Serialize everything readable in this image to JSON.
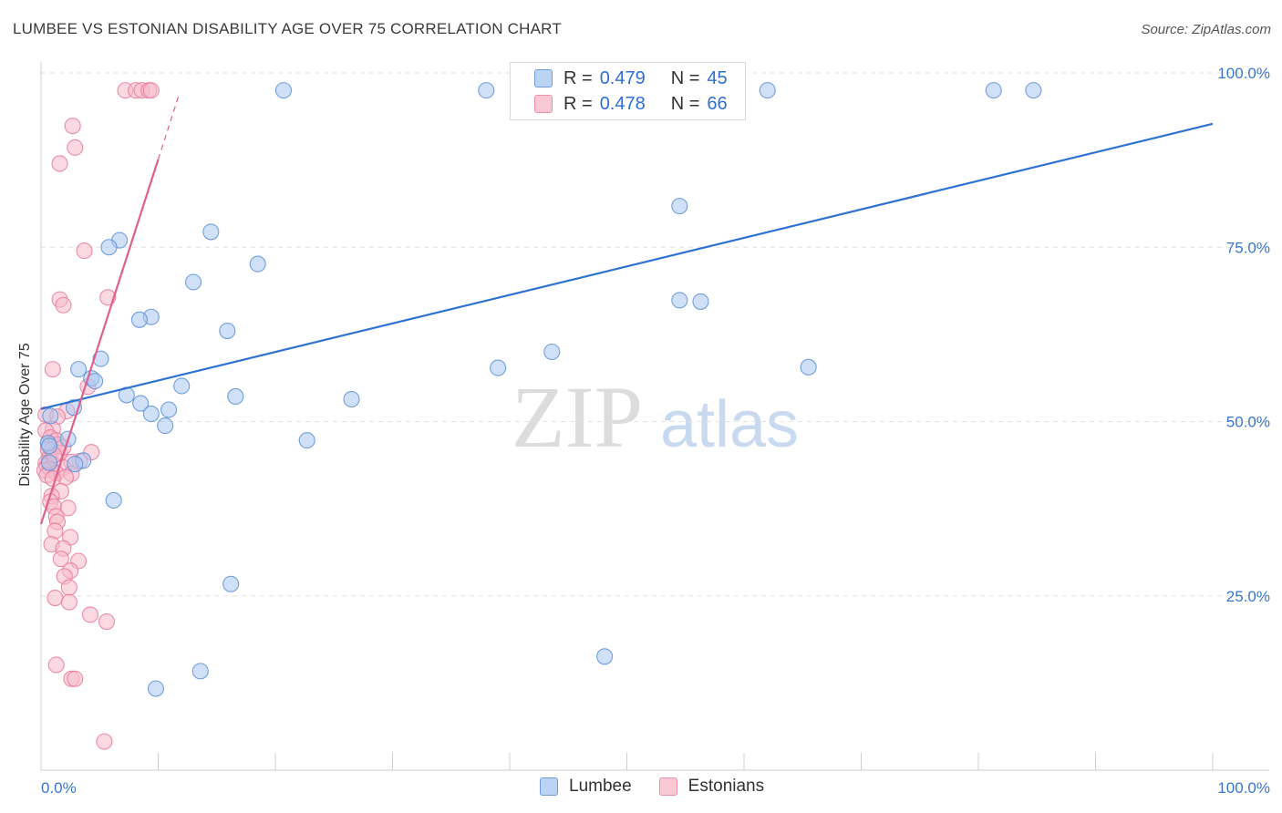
{
  "title": "LUMBEE VS ESTONIAN DISABILITY AGE OVER 75 CORRELATION CHART",
  "source": "Source: ZipAtlas.com",
  "watermark": {
    "zip": "ZIP",
    "atlas": "atlas"
  },
  "colors": {
    "lumbee_fill": "#a9c8f0",
    "lumbee_stroke": "#5b8fd6",
    "lumbee_line": "#2e72d2",
    "estonian_fill": "#f7b9ca",
    "estonian_stroke": "#e8799a",
    "estonian_line": "#e0608c",
    "axis_text": "#3a76cc"
  },
  "legend": {
    "rows": [
      {
        "series": "Lumbee",
        "r_label": "R =",
        "r_value": "0.479",
        "n_label": "N =",
        "n_value": "45"
      },
      {
        "series": "Estonians",
        "r_label": "R =",
        "r_value": "0.478",
        "n_label": "N =",
        "n_value": "66"
      }
    ],
    "bottom": [
      "Lumbee",
      "Estonians"
    ]
  },
  "chart_data": {
    "type": "scatter",
    "title": "LUMBEE VS ESTONIAN DISABILITY AGE OVER 75 CORRELATION CHART",
    "xlabel": "",
    "ylabel": "Disability Age Over 75",
    "xlim": [
      0,
      100
    ],
    "ylim": [
      0,
      100
    ],
    "x_tick_labels": [
      "0.0%",
      "100.0%"
    ],
    "y_tick_labels": [
      "25.0%",
      "50.0%",
      "75.0%",
      "100.0%"
    ],
    "y_ticks": [
      25,
      50,
      75,
      100
    ],
    "series": [
      {
        "name": "Lumbee",
        "points": [
          [
            20.7,
            97.5
          ],
          [
            38.0,
            97.5
          ],
          [
            62.0,
            97.5
          ],
          [
            81.3,
            97.5
          ],
          [
            84.7,
            97.5
          ],
          [
            54.5,
            80.9
          ],
          [
            14.5,
            77.2
          ],
          [
            6.7,
            76.0
          ],
          [
            5.8,
            75.0
          ],
          [
            18.5,
            72.6
          ],
          [
            13.0,
            70.0
          ],
          [
            54.5,
            67.4
          ],
          [
            56.3,
            67.2
          ],
          [
            9.4,
            65.0
          ],
          [
            8.4,
            64.6
          ],
          [
            15.9,
            63.0
          ],
          [
            5.1,
            59.0
          ],
          [
            43.6,
            60.0
          ],
          [
            3.2,
            57.5
          ],
          [
            4.3,
            56.2
          ],
          [
            65.5,
            57.8
          ],
          [
            39.0,
            57.7
          ],
          [
            4.6,
            55.8
          ],
          [
            12.0,
            55.1
          ],
          [
            7.3,
            53.8
          ],
          [
            16.6,
            53.6
          ],
          [
            26.5,
            53.2
          ],
          [
            8.5,
            52.6
          ],
          [
            2.8,
            52.0
          ],
          [
            10.9,
            51.7
          ],
          [
            9.4,
            51.1
          ],
          [
            10.6,
            49.4
          ],
          [
            0.8,
            50.8
          ],
          [
            2.3,
            47.5
          ],
          [
            22.7,
            47.3
          ],
          [
            0.6,
            46.9
          ],
          [
            3.6,
            44.4
          ],
          [
            2.9,
            43.9
          ],
          [
            0.7,
            44.1
          ],
          [
            6.2,
            38.7
          ],
          [
            16.2,
            26.7
          ],
          [
            48.1,
            16.3
          ],
          [
            13.6,
            14.2
          ],
          [
            9.8,
            11.7
          ],
          [
            0.7,
            46.5
          ]
        ],
        "trend": {
          "x": [
            0,
            100
          ],
          "y": [
            51.8,
            92.7
          ]
        }
      },
      {
        "name": "Estonians",
        "points": [
          [
            7.2,
            97.5
          ],
          [
            8.1,
            97.5
          ],
          [
            8.6,
            97.5
          ],
          [
            9.2,
            97.5
          ],
          [
            9.4,
            97.5
          ],
          [
            2.7,
            92.4
          ],
          [
            2.9,
            89.3
          ],
          [
            1.6,
            87.0
          ],
          [
            3.7,
            74.5
          ],
          [
            5.7,
            67.8
          ],
          [
            1.6,
            67.5
          ],
          [
            1.9,
            66.7
          ],
          [
            1.0,
            57.5
          ],
          [
            4.0,
            55.0
          ],
          [
            2.2,
            51.5
          ],
          [
            0.4,
            51.0
          ],
          [
            1.4,
            50.7
          ],
          [
            1.0,
            48.9
          ],
          [
            0.4,
            48.7
          ],
          [
            0.8,
            47.7
          ],
          [
            1.3,
            47.3
          ],
          [
            1.5,
            46.7
          ],
          [
            0.6,
            46.0
          ],
          [
            0.9,
            45.9
          ],
          [
            4.3,
            45.6
          ],
          [
            1.6,
            45.5
          ],
          [
            0.7,
            44.8
          ],
          [
            3.3,
            44.3
          ],
          [
            2.6,
            44.2
          ],
          [
            0.4,
            44.0
          ],
          [
            1.0,
            43.9
          ],
          [
            0.5,
            43.6
          ],
          [
            1.9,
            43.4
          ],
          [
            0.8,
            43.2
          ],
          [
            0.3,
            43.0
          ],
          [
            1.3,
            42.6
          ],
          [
            2.6,
            42.5
          ],
          [
            0.5,
            42.3
          ],
          [
            2.1,
            42.0
          ],
          [
            1.0,
            41.8
          ],
          [
            1.7,
            40.0
          ],
          [
            0.9,
            39.3
          ],
          [
            0.8,
            38.5
          ],
          [
            1.1,
            37.8
          ],
          [
            2.3,
            37.6
          ],
          [
            1.3,
            36.4
          ],
          [
            1.4,
            35.6
          ],
          [
            1.2,
            34.3
          ],
          [
            2.5,
            33.4
          ],
          [
            0.9,
            32.4
          ],
          [
            1.9,
            31.8
          ],
          [
            1.7,
            30.3
          ],
          [
            3.2,
            30.0
          ],
          [
            2.5,
            28.6
          ],
          [
            2.0,
            27.8
          ],
          [
            2.4,
            26.2
          ],
          [
            1.2,
            24.7
          ],
          [
            2.4,
            24.1
          ],
          [
            4.2,
            22.3
          ],
          [
            5.6,
            21.3
          ],
          [
            1.3,
            15.1
          ],
          [
            2.6,
            13.1
          ],
          [
            2.9,
            13.1
          ],
          [
            5.4,
            4.1
          ],
          [
            1.9,
            46.3
          ],
          [
            1.1,
            45.2
          ]
        ],
        "trend": {
          "x": [
            0,
            10
          ],
          "y": [
            35.3,
            87.6
          ]
        },
        "trend_dashed": {
          "x": [
            10,
            11.8
          ],
          "y": [
            87.6,
            97.0
          ]
        }
      }
    ]
  }
}
